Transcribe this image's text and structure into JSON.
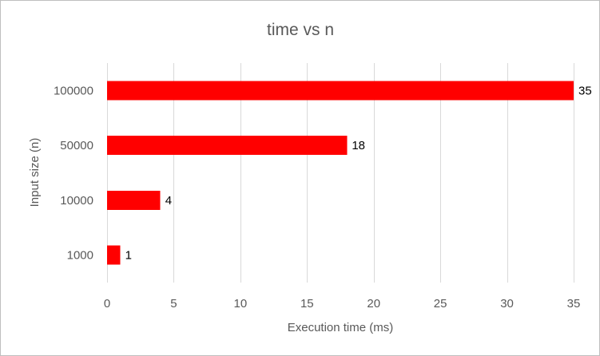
{
  "chart_data": {
    "type": "bar",
    "orientation": "horizontal",
    "title": "time vs n",
    "xlabel": "Execution time (ms)",
    "ylabel": "Input size (n)",
    "categories": [
      "1000",
      "10000",
      "50000",
      "100000"
    ],
    "values": [
      1,
      4,
      18,
      35
    ],
    "data_labels": [
      "1",
      "4",
      "18",
      "35"
    ],
    "xlim": [
      0,
      35
    ],
    "xticks": [
      0,
      5,
      10,
      15,
      20,
      25,
      30,
      35
    ],
    "xtick_labels": [
      "0",
      "5",
      "10",
      "15",
      "20",
      "25",
      "30",
      "35"
    ],
    "grid": "vertical",
    "legend": "none",
    "colors": {
      "bar": "#ff0000",
      "grid": "#d9d9d9",
      "text": "#595959",
      "data_label": "#000000"
    }
  }
}
